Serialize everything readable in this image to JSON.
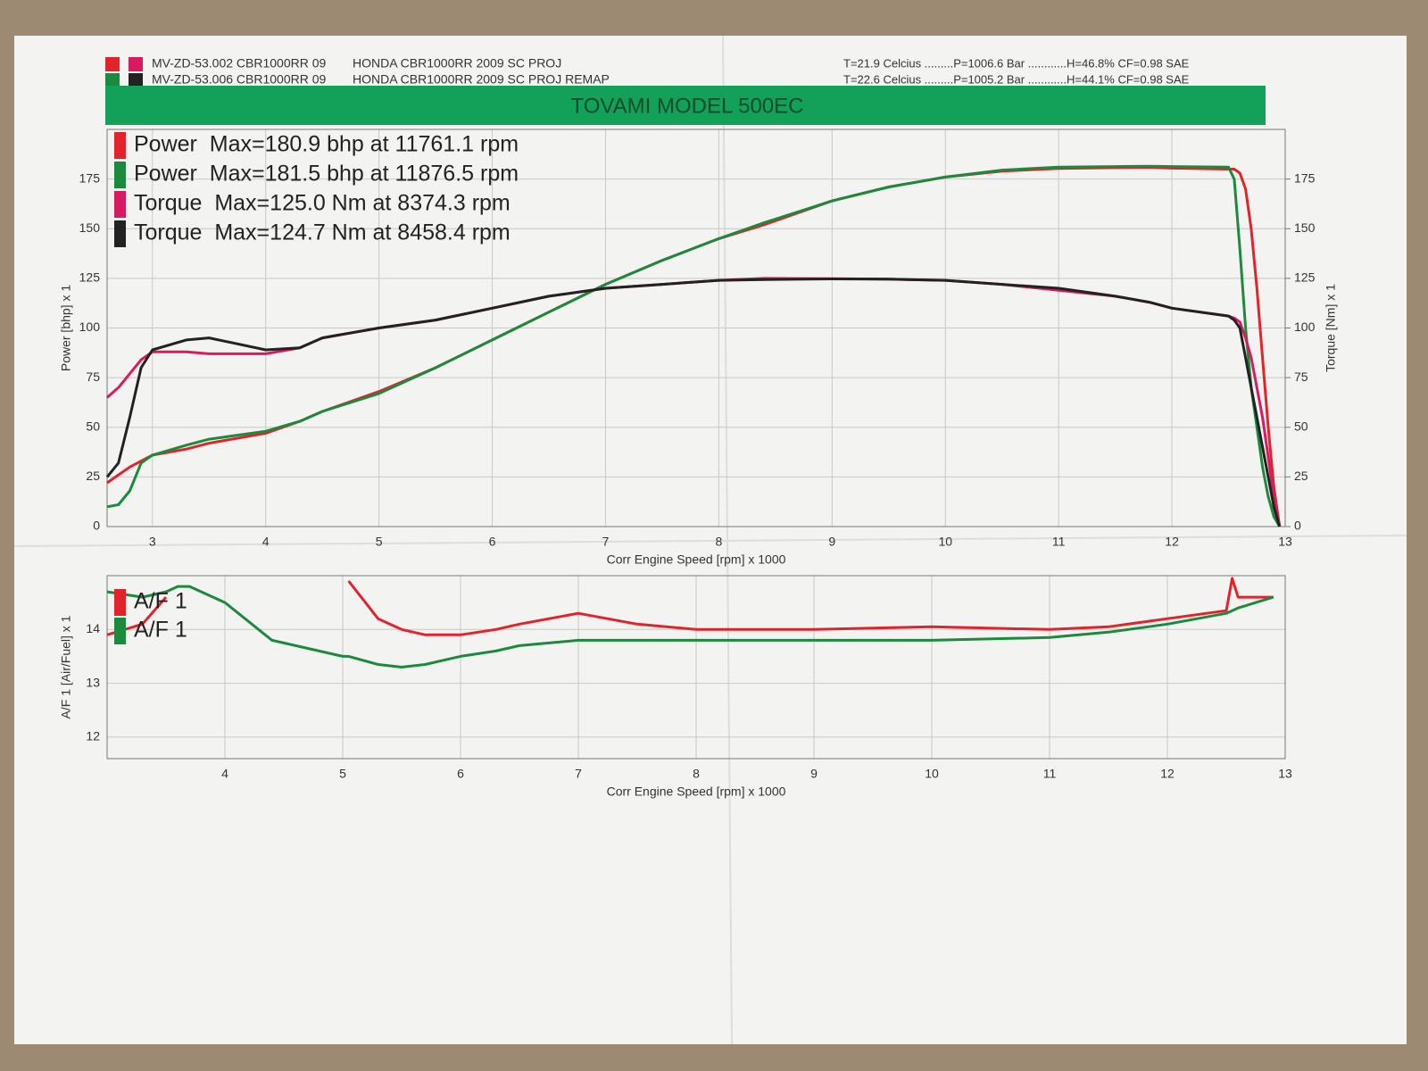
{
  "chart_data": [
    {
      "type": "line",
      "header": [
        {
          "id": "MV-ZD-53.002 CBR1000RR 09",
          "description": "HONDA CBR1000RR 2009 SC PROJ",
          "conditions": "T=21.9 Celcius .........P=1006.6 Bar ............H=46.8% CF=0.98 SAE"
        },
        {
          "id": "MV-ZD-53.006 CBR1000RR 09",
          "description": "HONDA CBR1000RR 2009 SC PROJ REMAP",
          "conditions": "T=22.6 Celcius .........P=1005.2 Bar ............H=44.1% CF=0.98 SAE"
        }
      ],
      "title": "TOVAMI MODEL 500EC",
      "x_label": "Corr Engine Speed [rpm] x 1000",
      "y_label": "Power [bhp] x 1",
      "y2_label": "Torque [Nm] x 1",
      "x": [
        2.6,
        2.7,
        2.8,
        2.9,
        3,
        3.3,
        3.5,
        4,
        4.3,
        4.5,
        5,
        5.5,
        6,
        6.5,
        7,
        7.5,
        8,
        8.4,
        9,
        9.5,
        10,
        10.5,
        11,
        11.5,
        11.8,
        12,
        12.5,
        12.55,
        12.6,
        12.65,
        12.7,
        12.75,
        12.8,
        12.85,
        12.9,
        12.95
      ],
      "series": [
        {
          "name": "Power  Max=180.9 bhp at 11761.1 rpm",
          "color": "#e3232b",
          "values": [
            22,
            26,
            30,
            33,
            36,
            39,
            42,
            47,
            53,
            58,
            68,
            80,
            94,
            108,
            122,
            134,
            145,
            152,
            164,
            171,
            176,
            179,
            180.3,
            180.7,
            180.9,
            180.5,
            180,
            180,
            178,
            170,
            150,
            120,
            85,
            50,
            20,
            0
          ]
        },
        {
          "name": "Power  Max=181.5 bhp at 11876.5 rpm",
          "color": "#1c8a3c",
          "values": [
            10,
            11,
            18,
            32,
            36,
            41,
            44,
            48,
            53,
            58,
            67,
            80,
            94,
            108,
            122,
            134,
            145,
            153,
            164,
            171,
            176,
            179.5,
            181,
            181.3,
            181.5,
            181.3,
            181,
            175,
            140,
            100,
            70,
            50,
            30,
            15,
            5,
            0
          ]
        },
        {
          "name": "Torque  Max=125.0 Nm at 8374.3 rpm",
          "color": "#d81b60",
          "axis": "y2",
          "values": [
            65,
            70,
            77,
            84,
            88,
            88,
            87,
            87,
            90,
            95,
            100,
            104,
            110,
            116,
            120,
            122,
            124,
            125,
            124.8,
            124.6,
            124,
            122,
            119,
            116,
            113,
            110,
            106,
            105,
            103,
            95,
            85,
            70,
            55,
            35,
            15,
            0
          ]
        },
        {
          "name": "Torque  Max=124.7 Nm at 8458.4 rpm",
          "color": "#222222",
          "axis": "y2",
          "values": [
            25,
            32,
            55,
            80,
            89,
            94,
            95,
            89,
            90,
            95,
            100,
            104,
            110,
            116,
            120,
            122,
            124,
            124.4,
            124.7,
            124.6,
            124,
            122,
            120,
            116,
            113,
            110,
            106,
            104,
            100,
            85,
            70,
            55,
            40,
            25,
            10,
            0
          ]
        }
      ],
      "xlim": [
        2.6,
        13
      ],
      "xticks": [
        3,
        4,
        5,
        6,
        7,
        8,
        9,
        10,
        11,
        12,
        13
      ],
      "ylim": [
        0,
        200
      ],
      "yticks": [
        0,
        25,
        50,
        75,
        100,
        125,
        150,
        175
      ],
      "y2lim": [
        0,
        200
      ],
      "y2ticks": [
        0,
        25,
        50,
        75,
        100,
        125,
        150,
        175
      ],
      "grid": true
    },
    {
      "type": "line",
      "x_label": "Corr Engine Speed [rpm] x 1000",
      "y_label": "A/F 1 [Air/Fuel] x 1",
      "x": [
        3,
        3.3,
        3.5,
        3.6,
        3.7,
        4,
        4.4,
        5,
        5.05,
        5.3,
        5.5,
        5.7,
        6,
        6.3,
        6.5,
        7,
        7.5,
        8,
        9,
        10,
        11,
        11.5,
        12,
        12.5,
        12.55,
        12.6,
        12.9
      ],
      "series": [
        {
          "name": "A/F 1",
          "color": "#e3232b",
          "values": [
            13.9,
            14.1,
            14.6,
            null,
            null,
            null,
            null,
            null,
            14.9,
            14.2,
            14.0,
            13.9,
            13.9,
            14.0,
            14.1,
            14.3,
            14.1,
            14.0,
            14.0,
            14.05,
            14.0,
            14.05,
            14.2,
            14.35,
            14.95,
            14.6,
            14.6
          ]
        },
        {
          "name": "A/F 1",
          "color": "#1c8a3c",
          "values": [
            14.7,
            14.6,
            14.7,
            14.8,
            14.8,
            14.5,
            13.8,
            13.5,
            13.5,
            13.35,
            13.3,
            13.35,
            13.5,
            13.6,
            13.7,
            13.8,
            13.8,
            13.8,
            13.8,
            13.8,
            13.85,
            13.95,
            14.1,
            14.3,
            14.35,
            14.4,
            14.6
          ]
        }
      ],
      "xlim": [
        3,
        13
      ],
      "xticks": [
        4,
        5,
        6,
        7,
        8,
        9,
        10,
        11,
        12,
        13
      ],
      "ylim": [
        11.6,
        15
      ],
      "yticks": [
        12,
        13,
        14
      ],
      "grid": true
    }
  ]
}
